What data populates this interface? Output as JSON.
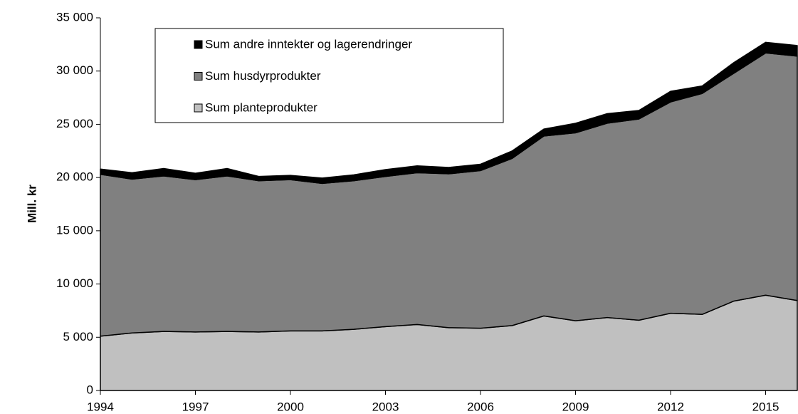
{
  "chart_data": {
    "type": "stacked-area",
    "y_label": "Mill. kr",
    "x": [
      1994,
      1995,
      1996,
      1997,
      1998,
      1999,
      2000,
      2001,
      2002,
      2003,
      2004,
      2005,
      2006,
      2007,
      2008,
      2009,
      2010,
      2011,
      2012,
      2013,
      2014,
      2015,
      2016
    ],
    "series": [
      {
        "name": "Sum planteprodukter",
        "color": "#c0c0c0",
        "values": [
          5100,
          5400,
          5550,
          5500,
          5550,
          5500,
          5600,
          5600,
          5750,
          6000,
          6200,
          5900,
          5850,
          6100,
          7000,
          6550,
          6850,
          6600,
          7250,
          7150,
          8400,
          8950,
          8450
        ]
      },
      {
        "name": "Sum husdyrprodukter",
        "color": "#808080",
        "values": [
          15200,
          14450,
          14600,
          14300,
          14600,
          14200,
          14200,
          13850,
          13950,
          14100,
          14250,
          14450,
          14800,
          15700,
          16900,
          17650,
          18250,
          18900,
          19850,
          20750,
          21400,
          22750,
          22950
        ]
      },
      {
        "name": "Sum andre inntekter og lagerendringer",
        "color": "#000000",
        "values": [
          500,
          600,
          700,
          600,
          700,
          400,
          400,
          500,
          550,
          650,
          650,
          600,
          600,
          700,
          650,
          900,
          900,
          800,
          1000,
          700,
          1000,
          1000,
          1000
        ]
      }
    ],
    "xlim": [
      1994,
      2016
    ],
    "xticks": [
      1994,
      1997,
      2000,
      2003,
      2006,
      2009,
      2012,
      2015
    ],
    "ylim": [
      0,
      35000
    ],
    "yticks": [
      0,
      {
        "value": 5000,
        "label": "5 000"
      },
      {
        "value": 10000,
        "label": "10 000"
      },
      {
        "value": 15000,
        "label": "15 000"
      },
      {
        "value": 20000,
        "label": "20 000"
      },
      {
        "value": 25000,
        "label": "25 000"
      },
      {
        "value": 30000,
        "label": "30 000"
      },
      {
        "value": 35000,
        "label": "35 000"
      }
    ],
    "legend": "top-left"
  }
}
